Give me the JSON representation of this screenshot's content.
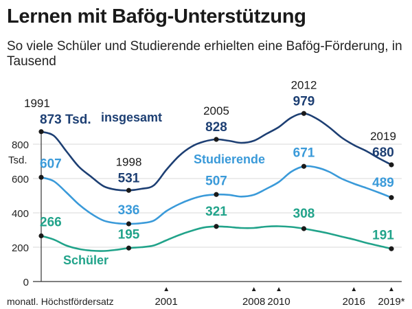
{
  "header": {
    "title": "Lernen mit Bafög-Unterstützung",
    "subtitle": "So viele Schüler und Studierende erhielten eine Bafög-Förderung, in Tausend"
  },
  "chart_data": {
    "type": "line",
    "title": "Lernen mit Bafög-Unterstützung",
    "subtitle": "So viele Schüler und Studierende erhielten eine Bafög-Förderung, in Tausend",
    "xlim": [
      1991,
      2019
    ],
    "ylim": [
      0,
      1000
    ],
    "y_ticks": [
      0,
      200,
      400,
      600,
      800
    ],
    "y_tick_labels": [
      "0",
      "200",
      "400",
      "600",
      "800"
    ],
    "y_unit_label": "Tsd.",
    "grid": true,
    "series": [
      {
        "name": "insgesamt",
        "color": "#1d3f73",
        "points": [
          [
            1991,
            873
          ],
          [
            1992,
            850
          ],
          [
            1993,
            760
          ],
          [
            1994,
            670
          ],
          [
            1995,
            610
          ],
          [
            1996,
            555
          ],
          [
            1997,
            535
          ],
          [
            1998,
            531
          ],
          [
            1999,
            540
          ],
          [
            2000,
            560
          ],
          [
            2001,
            650
          ],
          [
            2002,
            730
          ],
          [
            2003,
            785
          ],
          [
            2004,
            815
          ],
          [
            2005,
            828
          ],
          [
            2006,
            820
          ],
          [
            2007,
            808
          ],
          [
            2008,
            820
          ],
          [
            2009,
            860
          ],
          [
            2010,
            900
          ],
          [
            2011,
            955
          ],
          [
            2012,
            979
          ],
          [
            2013,
            950
          ],
          [
            2014,
            900
          ],
          [
            2015,
            840
          ],
          [
            2016,
            795
          ],
          [
            2017,
            760
          ],
          [
            2018,
            718
          ],
          [
            2019,
            680
          ]
        ],
        "labels": [
          {
            "year": 1991,
            "value": 873,
            "year_label": "1991",
            "value_label": "873 Tsd."
          },
          {
            "year": 1998,
            "value": 531,
            "year_label": "1998",
            "value_label": "531"
          },
          {
            "year": 2005,
            "value": 828,
            "year_label": "2005",
            "value_label": "828"
          },
          {
            "year": 2012,
            "value": 979,
            "year_label": "2012",
            "value_label": "979"
          },
          {
            "year": 2019,
            "value": 680,
            "year_label": "2019",
            "value_label": "680"
          }
        ]
      },
      {
        "name": "Studierende",
        "color": "#3a9ad9",
        "points": [
          [
            1991,
            607
          ],
          [
            1992,
            585
          ],
          [
            1993,
            520
          ],
          [
            1994,
            450
          ],
          [
            1995,
            395
          ],
          [
            1996,
            355
          ],
          [
            1997,
            340
          ],
          [
            1998,
            336
          ],
          [
            1999,
            340
          ],
          [
            2000,
            355
          ],
          [
            2001,
            410
          ],
          [
            2002,
            450
          ],
          [
            2003,
            480
          ],
          [
            2004,
            500
          ],
          [
            2005,
            507
          ],
          [
            2006,
            505
          ],
          [
            2007,
            495
          ],
          [
            2008,
            505
          ],
          [
            2009,
            540
          ],
          [
            2010,
            580
          ],
          [
            2011,
            640
          ],
          [
            2012,
            671
          ],
          [
            2013,
            665
          ],
          [
            2014,
            640
          ],
          [
            2015,
            600
          ],
          [
            2016,
            570
          ],
          [
            2017,
            545
          ],
          [
            2018,
            518
          ],
          [
            2019,
            489
          ]
        ],
        "labels": [
          {
            "year": 1991,
            "value": 607,
            "value_label": "607"
          },
          {
            "year": 1998,
            "value": 336,
            "value_label": "336"
          },
          {
            "year": 2005,
            "value": 507,
            "value_label": "507"
          },
          {
            "year": 2012,
            "value": 671,
            "value_label": "671"
          },
          {
            "year": 2019,
            "value": 489,
            "value_label": "489"
          }
        ]
      },
      {
        "name": "Schüler",
        "color": "#21a38a",
        "points": [
          [
            1991,
            266
          ],
          [
            1992,
            245
          ],
          [
            1993,
            210
          ],
          [
            1994,
            190
          ],
          [
            1995,
            180
          ],
          [
            1996,
            178
          ],
          [
            1997,
            185
          ],
          [
            1998,
            195
          ],
          [
            1999,
            200
          ],
          [
            2000,
            210
          ],
          [
            2001,
            240
          ],
          [
            2002,
            270
          ],
          [
            2003,
            295
          ],
          [
            2004,
            315
          ],
          [
            2005,
            321
          ],
          [
            2006,
            318
          ],
          [
            2007,
            312
          ],
          [
            2008,
            312
          ],
          [
            2009,
            320
          ],
          [
            2010,
            322
          ],
          [
            2011,
            318
          ],
          [
            2012,
            308
          ],
          [
            2013,
            295
          ],
          [
            2014,
            280
          ],
          [
            2015,
            262
          ],
          [
            2016,
            245
          ],
          [
            2017,
            225
          ],
          [
            2018,
            208
          ],
          [
            2019,
            191
          ]
        ],
        "labels": [
          {
            "year": 1991,
            "value": 266,
            "value_label": "266"
          },
          {
            "year": 1998,
            "value": 195,
            "value_label": "195"
          },
          {
            "year": 2005,
            "value": 321,
            "value_label": "321"
          },
          {
            "year": 2012,
            "value": 308,
            "value_label": "308"
          },
          {
            "year": 2019,
            "value": 191,
            "value_label": "191"
          }
        ]
      }
    ],
    "series_legend_labels": {
      "insgesamt": "insgesamt",
      "Studierende": "Studierende",
      "Schüler": "Schüler"
    },
    "x_axis_note": "monatl. Höchstfördersatz",
    "x_markers": [
      {
        "year": 2001,
        "label": "2001"
      },
      {
        "year": 2008,
        "label": "2008"
      },
      {
        "year": 2010,
        "label": "2010"
      },
      {
        "year": 2016,
        "label": "2016"
      },
      {
        "year": 2019,
        "label": "2019*"
      }
    ],
    "marker_symbol": "▲"
  }
}
